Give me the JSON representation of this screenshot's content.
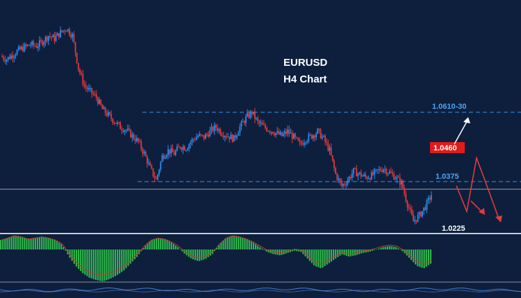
{
  "chart_data": {
    "type": "candlestick",
    "symbol": "EURUSD",
    "timeframe_label": "H4 Chart",
    "price_levels": [
      {
        "label": "1.0610-30",
        "value": 1.062,
        "style": "dashed",
        "color": "#3d8fe0"
      },
      {
        "label": "1.0375",
        "value": 1.0375,
        "style": "dashed",
        "color": "#3d8fe0"
      },
      {
        "label": "1.0460",
        "value": 1.046,
        "style": "badge",
        "color": "#e01b1b"
      },
      {
        "label": "1.0225",
        "value": 1.0225,
        "style": "plain",
        "color": "#ffffff"
      }
    ],
    "price_path": [
      1.08,
      1.079,
      1.0805,
      1.082,
      1.083,
      1.084,
      1.0835,
      1.085,
      1.087,
      1.086,
      1.088,
      1.0895,
      1.087,
      1.076,
      1.07,
      1.068,
      1.066,
      1.062,
      1.06,
      1.058,
      1.056,
      1.055,
      1.053,
      1.051,
      1.047,
      1.042,
      1.038,
      1.046,
      1.048,
      1.047,
      1.0495,
      1.049,
      1.0515,
      1.053,
      1.0525,
      1.0545,
      1.056,
      1.054,
      1.053,
      1.052,
      1.056,
      1.059,
      1.061,
      1.0575,
      1.056,
      1.055,
      1.054,
      1.053,
      1.0545,
      1.0525,
      1.05,
      1.052,
      1.053,
      1.0545,
      1.052,
      1.048,
      1.04,
      1.036,
      1.038,
      1.041,
      1.04,
      1.039,
      1.0395,
      1.041,
      1.042,
      1.0405,
      1.039,
      1.037,
      1.03,
      1.024,
      1.026,
      1.029,
      1.033
    ],
    "oscillator": {
      "type": "histogram",
      "values": [
        8,
        10,
        12,
        11,
        9,
        10,
        11,
        10,
        8,
        4,
        -6,
        -14,
        -20,
        -24,
        -26,
        -27,
        -25,
        -22,
        -18,
        -12,
        -6,
        2,
        8,
        10,
        9,
        6,
        2,
        -4,
        -8,
        -10,
        -8,
        -4,
        4,
        10,
        12,
        11,
        9,
        6,
        2,
        -2,
        -4,
        -5,
        -3,
        -1,
        -2,
        -8,
        -14,
        -16,
        -12,
        -8,
        -4,
        -6,
        -5,
        -3,
        -2,
        0,
        2,
        3,
        2,
        -2,
        -8,
        -14,
        -16,
        -12
      ]
    }
  }
}
